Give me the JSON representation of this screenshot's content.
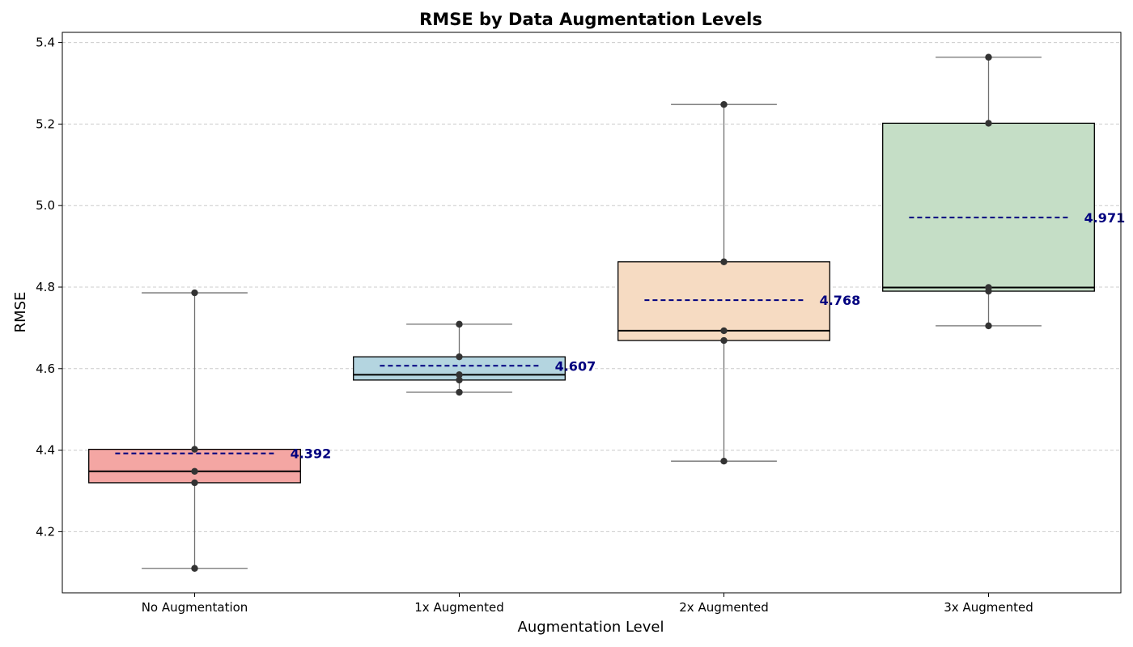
{
  "chart_data": {
    "type": "box",
    "title": "RMSE by Data Augmentation Levels",
    "xlabel": "Augmentation Level",
    "ylabel": "RMSE",
    "ylim": [
      4.05,
      5.425
    ],
    "yticks": [
      4.2,
      4.4,
      4.6,
      4.8,
      5.0,
      5.2,
      5.4
    ],
    "ytick_labels": [
      "4.2",
      "4.4",
      "4.6",
      "4.8",
      "5.0",
      "5.2",
      "5.4"
    ],
    "grid": true,
    "categories": [
      "No Augmentation",
      "1x Augmented",
      "2x Augmented",
      "3x Augmented"
    ],
    "series": [
      {
        "category": "No Augmentation",
        "color": "#f4a6a3",
        "whisker_low": 4.11,
        "q1": 4.32,
        "median": 4.348,
        "q3": 4.402,
        "whisker_high": 4.786,
        "mean": 4.392,
        "mean_label": "4.392",
        "points": [
          4.11,
          4.32,
          4.348,
          4.402,
          4.786
        ]
      },
      {
        "category": "1x Augmented",
        "color": "#b4d5e0",
        "whisker_low": 4.542,
        "q1": 4.572,
        "median": 4.585,
        "q3": 4.629,
        "whisker_high": 4.709,
        "mean": 4.607,
        "mean_label": "4.607",
        "points": [
          4.542,
          4.572,
          4.585,
          4.629,
          4.709
        ]
      },
      {
        "category": "2x Augmented",
        "color": "#f6dbc2",
        "whisker_low": 4.373,
        "q1": 4.669,
        "median": 4.693,
        "q3": 4.862,
        "whisker_high": 5.248,
        "mean": 4.768,
        "mean_label": "4.768",
        "points": [
          4.373,
          4.669,
          4.693,
          4.862,
          5.248
        ]
      },
      {
        "category": "3x Augmented",
        "color": "#c5dec6",
        "whisker_low": 4.705,
        "q1": 4.79,
        "median": 4.799,
        "q3": 5.202,
        "whisker_high": 5.364,
        "mean": 4.971,
        "mean_label": "4.971",
        "points": [
          4.705,
          4.79,
          4.799,
          5.202,
          5.364
        ]
      }
    ]
  }
}
